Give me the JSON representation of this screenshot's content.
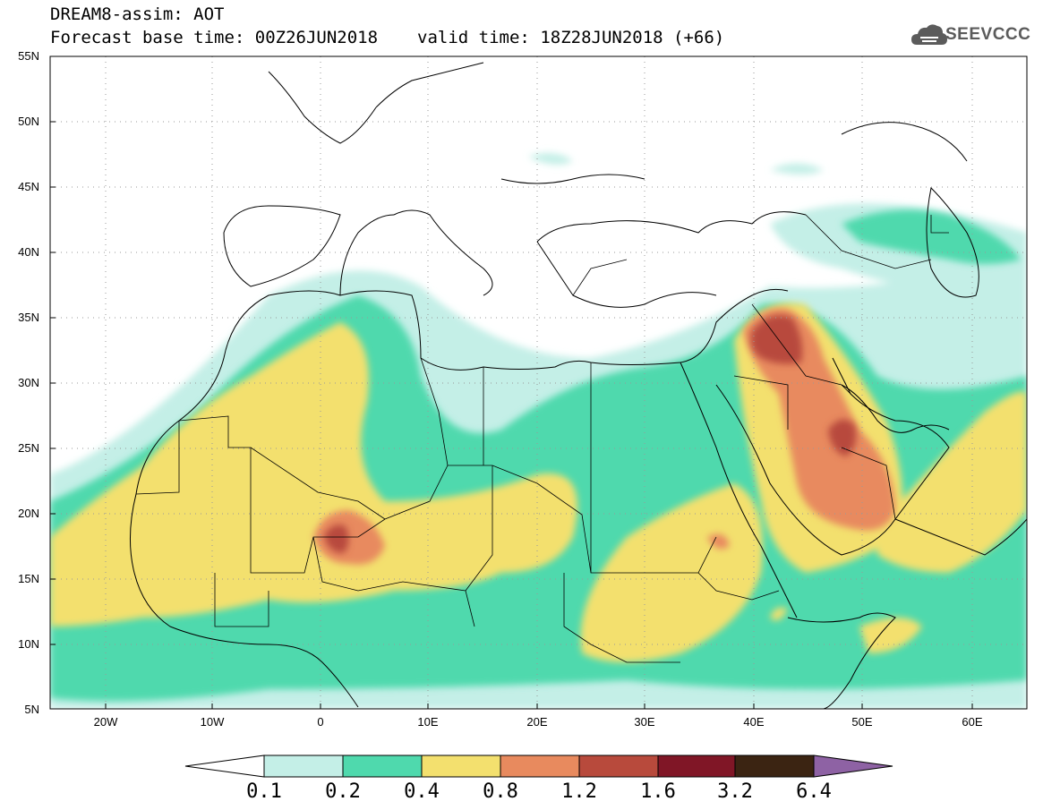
{
  "header": {
    "model_line": "DREAM8-assim: AOT",
    "base_time": "Forecast base time: 00Z26JUN2018",
    "valid_time": "valid time: 18Z28JUN2018 (+66)"
  },
  "logo": {
    "text": "SEEVCCC",
    "icon": "cloud-logo-icon"
  },
  "map": {
    "extent": {
      "lon": [
        -25,
        65
      ],
      "lat": [
        5,
        55
      ]
    },
    "lat_labels": [
      "5N",
      "10N",
      "15N",
      "20N",
      "25N",
      "30N",
      "35N",
      "40N",
      "45N",
      "50N",
      "55N"
    ],
    "lon_labels": [
      "20W",
      "10W",
      "0",
      "10E",
      "20E",
      "30E",
      "40E",
      "50E",
      "60E"
    ],
    "grid": "dotted"
  },
  "legend": {
    "thresholds": [
      "0.1",
      "0.2",
      "0.4",
      "0.8",
      "1.2",
      "1.6",
      "3.2",
      "6.4"
    ],
    "colors": [
      "#c4efe7",
      "#4fd9ad",
      "#f3e06e",
      "#e88a5e",
      "#b84a3c",
      "#801626",
      "#3b2412",
      "#8e62a4"
    ]
  }
}
